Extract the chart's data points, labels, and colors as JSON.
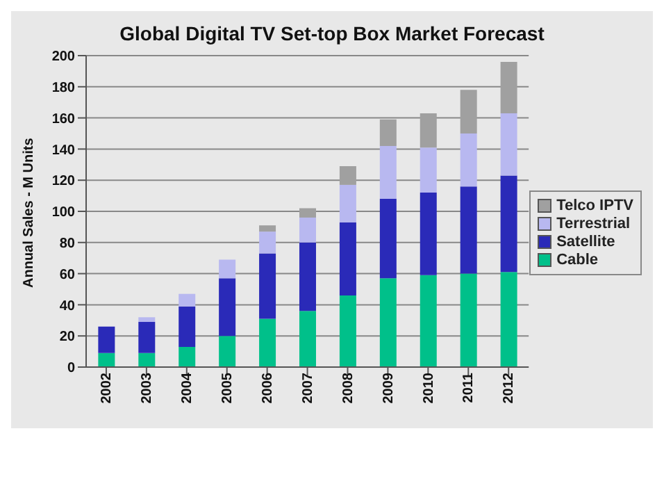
{
  "chart_data": {
    "type": "bar",
    "title": "Global Digital TV Set-top Box Market Forecast",
    "ylabel": "Annual Sales - M Units",
    "categories": [
      "2002",
      "2003",
      "2004",
      "2005",
      "2006",
      "2007",
      "2008",
      "2009",
      "2010",
      "2011",
      "2012"
    ],
    "stacked": true,
    "ylim": [
      0,
      200
    ],
    "yticks": [
      0,
      20,
      40,
      60,
      80,
      100,
      120,
      140,
      160,
      180,
      200
    ],
    "grid": "y",
    "legend": "right",
    "series": [
      {
        "name": "Cable",
        "color": "#00c08a",
        "values": [
          9,
          9,
          13,
          20,
          31,
          36,
          46,
          57,
          59,
          60,
          61
        ]
      },
      {
        "name": "Satellite",
        "color": "#2a2ab8",
        "values": [
          17,
          20,
          26,
          37,
          42,
          44,
          47,
          51,
          53,
          56,
          62
        ]
      },
      {
        "name": "Terrestrial",
        "color": "#b8b8f0",
        "values": [
          0,
          3,
          8,
          12,
          14,
          16,
          24,
          34,
          29,
          34,
          40
        ]
      },
      {
        "name": "Telco IPTV",
        "color": "#a0a0a0",
        "values": [
          0,
          0,
          0,
          0,
          4,
          6,
          12,
          17,
          22,
          28,
          33
        ]
      }
    ]
  }
}
